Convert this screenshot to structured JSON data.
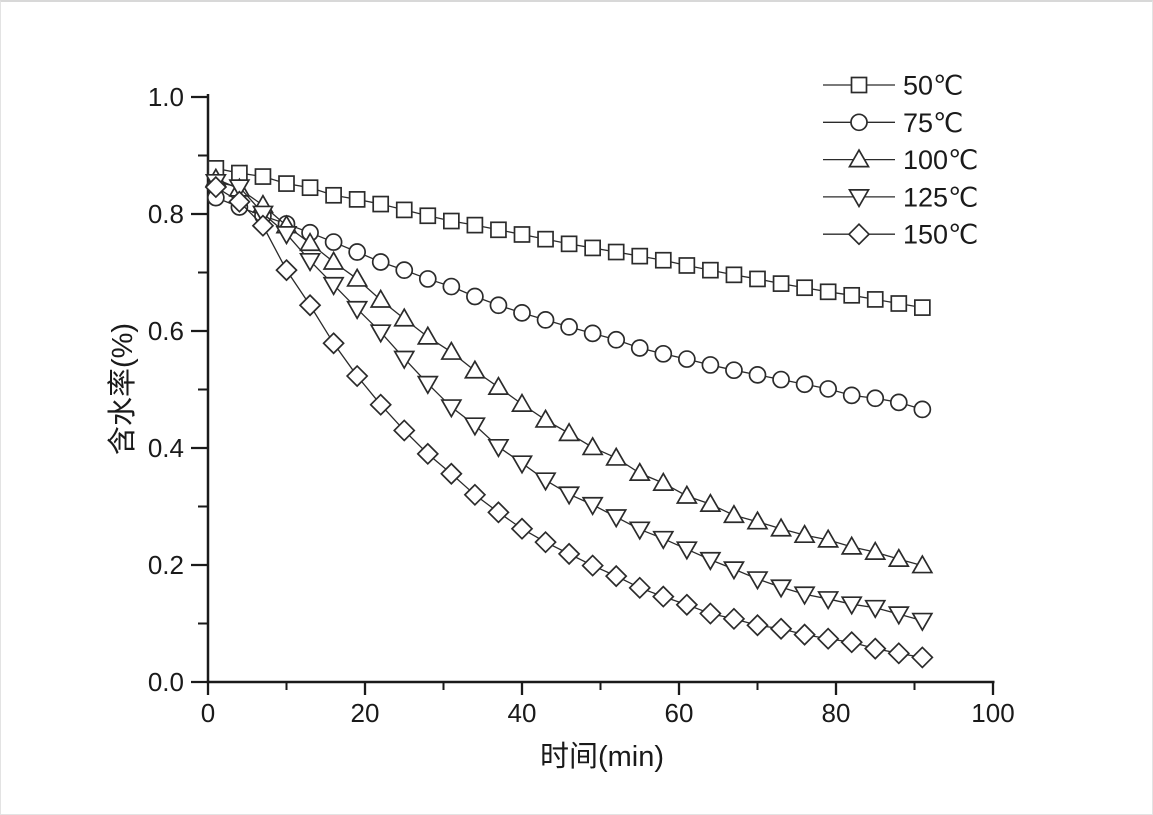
{
  "figure": {
    "background": "#ffffff",
    "border_color": "#d8d8d8",
    "axis_color": "#1a1a1a",
    "line_color": "#2b2b2b",
    "marker_fill": "#ffffff"
  },
  "chart_data": {
    "type": "line",
    "title": "",
    "xlabel": "时间(min)",
    "ylabel": "含水率(%)",
    "xlim": [
      0,
      100
    ],
    "ylim": [
      0.0,
      1.0
    ],
    "x_ticks": [
      "0",
      "20",
      "40",
      "60",
      "80",
      "100"
    ],
    "x_tick_values": [
      0,
      20,
      40,
      60,
      80,
      100
    ],
    "x_minor_ticks": [
      10,
      30,
      50,
      70,
      90
    ],
    "y_ticks": [
      "0.0",
      "0.2",
      "0.4",
      "0.6",
      "0.8",
      "1.0"
    ],
    "y_tick_values": [
      0.0,
      0.2,
      0.4,
      0.6,
      0.8,
      1.0
    ],
    "y_minor_ticks": [
      0.1,
      0.3,
      0.5,
      0.7,
      0.9
    ],
    "grid": false,
    "legend_position": "top-right",
    "x": [
      1,
      4,
      7,
      10,
      13,
      16,
      19,
      22,
      25,
      28,
      31,
      34,
      37,
      40,
      43,
      46,
      49,
      52,
      55,
      58,
      61,
      64,
      67,
      70,
      73,
      76,
      79,
      82,
      85,
      88,
      91
    ],
    "series": [
      {
        "name": "50℃",
        "marker": "square",
        "values": [
          0.878,
          0.87,
          0.864,
          0.852,
          0.845,
          0.832,
          0.825,
          0.817,
          0.807,
          0.797,
          0.788,
          0.781,
          0.773,
          0.765,
          0.757,
          0.749,
          0.742,
          0.735,
          0.728,
          0.721,
          0.712,
          0.704,
          0.696,
          0.689,
          0.681,
          0.674,
          0.667,
          0.661,
          0.654,
          0.647,
          0.64
        ]
      },
      {
        "name": "75℃",
        "marker": "circle",
        "values": [
          0.828,
          0.812,
          0.797,
          0.783,
          0.768,
          0.752,
          0.735,
          0.718,
          0.704,
          0.689,
          0.676,
          0.659,
          0.644,
          0.631,
          0.619,
          0.607,
          0.596,
          0.585,
          0.571,
          0.561,
          0.552,
          0.542,
          0.533,
          0.525,
          0.517,
          0.509,
          0.501,
          0.49,
          0.485,
          0.478,
          0.466
        ]
      },
      {
        "name": "100℃",
        "marker": "triangle-up",
        "values": [
          0.86,
          0.843,
          0.815,
          0.78,
          0.75,
          0.718,
          0.689,
          0.653,
          0.621,
          0.59,
          0.564,
          0.532,
          0.504,
          0.475,
          0.448,
          0.425,
          0.401,
          0.383,
          0.357,
          0.34,
          0.318,
          0.304,
          0.285,
          0.274,
          0.262,
          0.251,
          0.243,
          0.231,
          0.222,
          0.21,
          0.199
        ]
      },
      {
        "name": "125℃",
        "marker": "triangle-down",
        "values": [
          0.855,
          0.846,
          0.801,
          0.766,
          0.72,
          0.679,
          0.638,
          0.598,
          0.553,
          0.51,
          0.47,
          0.439,
          0.402,
          0.374,
          0.345,
          0.321,
          0.303,
          0.282,
          0.261,
          0.245,
          0.227,
          0.209,
          0.193,
          0.176,
          0.162,
          0.15,
          0.142,
          0.133,
          0.127,
          0.116,
          0.105
        ]
      },
      {
        "name": "150℃",
        "marker": "diamond",
        "values": [
          0.846,
          0.821,
          0.78,
          0.704,
          0.644,
          0.579,
          0.523,
          0.474,
          0.43,
          0.39,
          0.356,
          0.32,
          0.29,
          0.262,
          0.239,
          0.219,
          0.199,
          0.181,
          0.161,
          0.146,
          0.132,
          0.117,
          0.108,
          0.097,
          0.091,
          0.081,
          0.074,
          0.068,
          0.057,
          0.049,
          0.042
        ]
      }
    ]
  }
}
